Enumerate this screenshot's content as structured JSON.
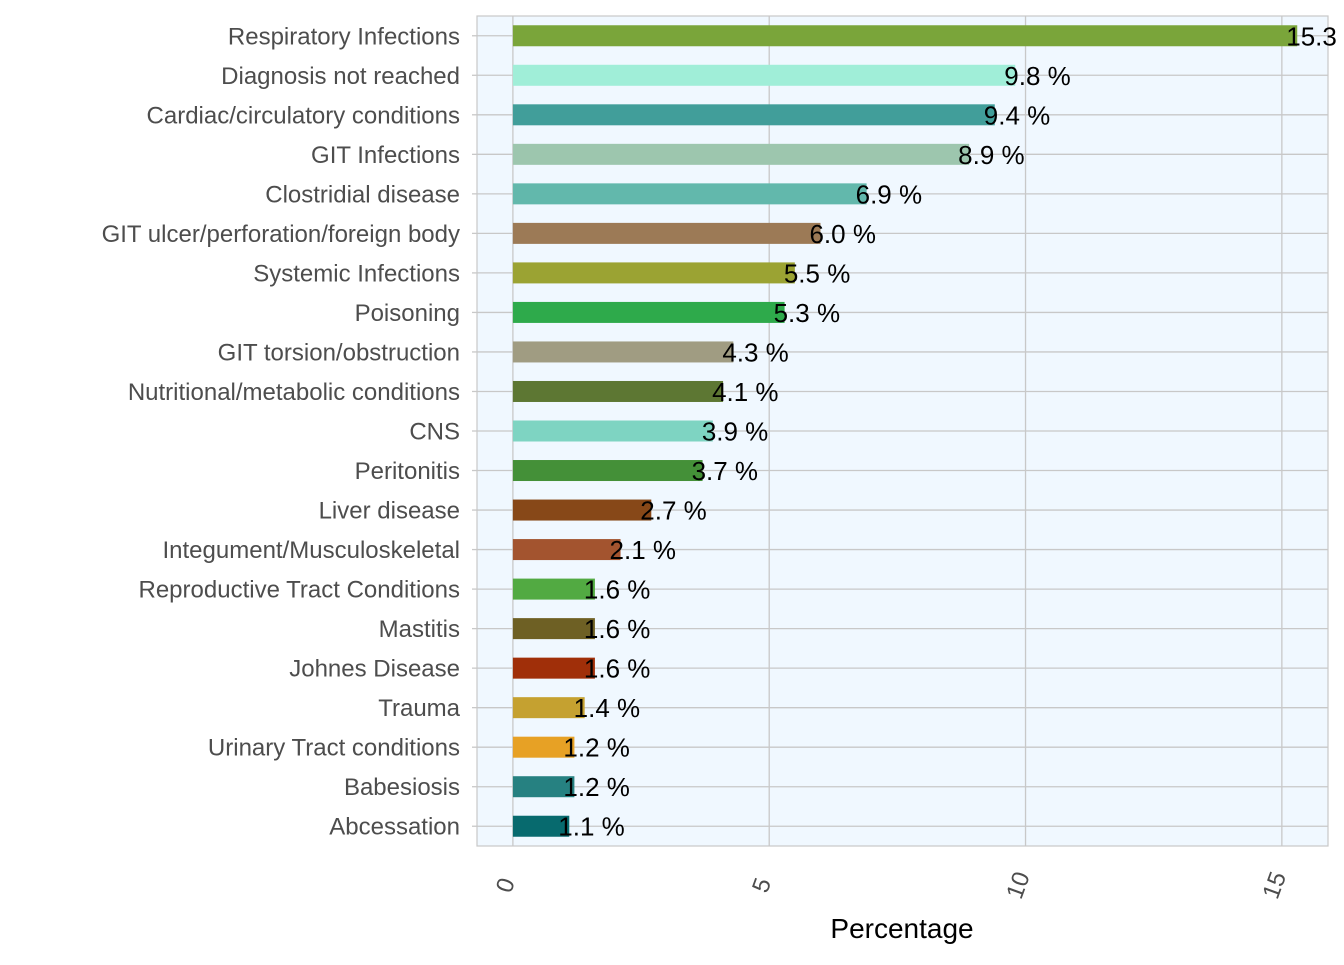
{
  "chart_data": {
    "type": "bar",
    "orientation": "horizontal",
    "title": "",
    "xlabel": "Percentage",
    "ylabel": "",
    "xlim": [
      -0.7,
      15.9
    ],
    "x_ticks": [
      0,
      5,
      10,
      15
    ],
    "grid": true,
    "legend": "none",
    "categories": [
      "Respiratory Infections",
      "Diagnosis not reached",
      "Cardiac/circulatory conditions",
      "GIT Infections",
      "Clostridial disease",
      "GIT ulcer/perforation/foreign body",
      "Systemic Infections",
      "Poisoning",
      "GIT torsion/obstruction",
      "Nutritional/metabolic conditions",
      "CNS",
      "Peritonitis",
      "Liver disease",
      "Integument/Musculoskeletal",
      "Reproductive Tract Conditions",
      "Mastitis",
      "Johnes Disease",
      "Trauma",
      "Urinary Tract conditions",
      "Babesiosis",
      "Abcessation"
    ],
    "values": [
      15.3,
      9.8,
      9.4,
      8.9,
      6.9,
      6.0,
      5.5,
      5.3,
      4.3,
      4.1,
      3.9,
      3.7,
      2.7,
      2.1,
      1.6,
      1.6,
      1.6,
      1.4,
      1.2,
      1.2,
      1.1
    ],
    "data_labels": [
      "15.3",
      "9.8 %",
      "9.4 %",
      "8.9 %",
      "6.9 %",
      "6.0 %",
      "5.5 %",
      "5.3 %",
      "4.3 %",
      "4.1 %",
      "3.9 %",
      "3.7 %",
      "2.7 %",
      "2.1 %",
      "1.6 %",
      "1.6 %",
      "1.6 %",
      "1.4 %",
      "1.2 %",
      "1.2 %",
      "1.1 %"
    ],
    "colors": [
      "#7aa53a",
      "#a0eed8",
      "#419e9a",
      "#9dc6ae",
      "#62b8ac",
      "#9c7a56",
      "#9ba333",
      "#2eaa4b",
      "#a09c82",
      "#5d7733",
      "#7ed4c2",
      "#449038",
      "#874818",
      "#a3542f",
      "#52aa42",
      "#6e6024",
      "#a02f09",
      "#c5a130",
      "#e7a125",
      "#268181",
      "#076a6e"
    ],
    "panel_background": "#f0f8ff",
    "grid_color": "#c8c8c8"
  }
}
